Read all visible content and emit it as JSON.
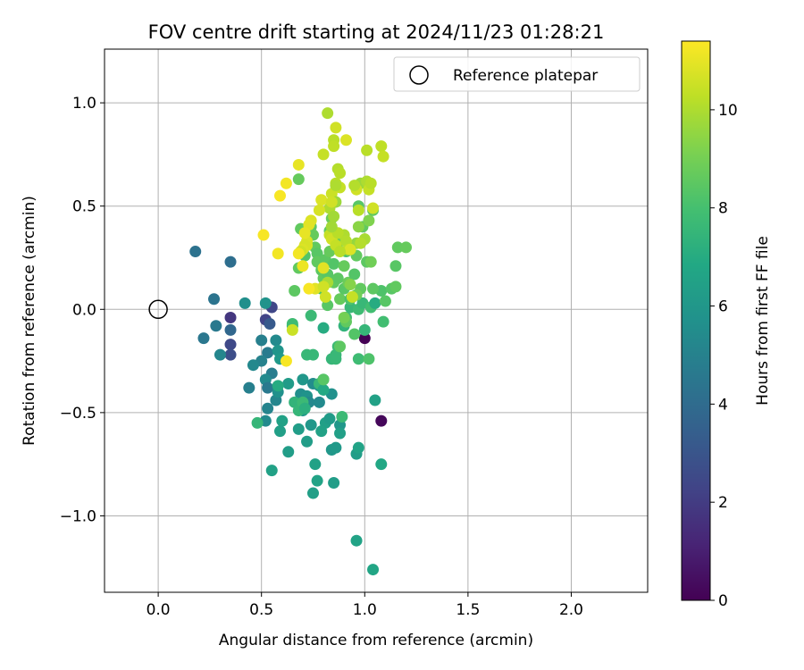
{
  "chart_data": {
    "type": "scatter",
    "title": "FOV centre drift starting at 2024/11/23 01:28:21",
    "xlabel": "Angular distance from reference (arcmin)",
    "ylabel": "Rotation from reference (arcmin)",
    "xlim": [
      -0.26,
      2.37
    ],
    "ylim": [
      -1.37,
      1.26
    ],
    "x_ticks": [
      0.0,
      0.5,
      1.0,
      1.5,
      2.0
    ],
    "x_tick_labels": [
      "0.0",
      "0.5",
      "1.0",
      "1.5",
      "2.0"
    ],
    "y_ticks": [
      -1.0,
      -0.5,
      0.0,
      0.5,
      1.0
    ],
    "y_tick_labels": [
      "−1.0",
      "−0.5",
      "0.0",
      "0.5",
      "1.0"
    ],
    "grid": true,
    "legend": {
      "position": "top-right",
      "entries": [
        "Reference platepar"
      ]
    },
    "reference_point": {
      "x": 0.0,
      "y": 0.0,
      "marker": "hollow-circle"
    },
    "colorbar": {
      "label": "Hours from first FF file",
      "colormap": "viridis",
      "range": [
        0,
        11.4
      ],
      "ticks": [
        0,
        2,
        4,
        6,
        8,
        10
      ],
      "tick_labels": [
        "0",
        "2",
        "4",
        "6",
        "8",
        "10"
      ]
    },
    "series": [
      {
        "points": [
          [
            1.0,
            -0.14,
            0.0
          ],
          [
            1.08,
            -0.54,
            0.2
          ],
          [
            0.35,
            -0.04,
            1.8
          ],
          [
            0.35,
            -0.17,
            2.5
          ],
          [
            0.35,
            -0.22,
            2.7
          ],
          [
            0.52,
            -0.05,
            2.3
          ],
          [
            0.55,
            0.01,
            2.4
          ],
          [
            0.54,
            -0.07,
            3.2
          ],
          [
            0.35,
            -0.1,
            3.8
          ],
          [
            0.35,
            0.23,
            4.1
          ],
          [
            0.18,
            0.28,
            4.3
          ],
          [
            0.27,
            0.05,
            4.4
          ],
          [
            0.28,
            -0.08,
            4.6
          ],
          [
            0.22,
            -0.14,
            4.5
          ],
          [
            0.3,
            -0.22,
            5.2
          ],
          [
            0.42,
            0.03,
            5.6
          ],
          [
            0.52,
            0.03,
            5.8
          ],
          [
            0.5,
            -0.15,
            4.9
          ],
          [
            0.53,
            -0.21,
            4.7
          ],
          [
            0.55,
            -0.31,
            4.8
          ],
          [
            0.5,
            -0.25,
            5.0
          ],
          [
            0.46,
            -0.27,
            5.3
          ],
          [
            0.44,
            -0.38,
            4.9
          ],
          [
            0.52,
            -0.34,
            5.4
          ],
          [
            0.53,
            -0.38,
            4.6
          ],
          [
            0.53,
            -0.48,
            5.1
          ],
          [
            0.52,
            -0.54,
            5.4
          ],
          [
            0.57,
            -0.44,
            5.2
          ],
          [
            0.58,
            -0.4,
            5.7
          ],
          [
            0.57,
            -0.15,
            5.4
          ],
          [
            0.58,
            -0.2,
            5.9
          ],
          [
            0.59,
            -0.24,
            6.1
          ],
          [
            0.63,
            -0.36,
            6.2
          ],
          [
            0.6,
            -0.54,
            6.5
          ],
          [
            0.59,
            -0.59,
            6.4
          ],
          [
            0.63,
            -0.69,
            6.3
          ],
          [
            0.55,
            -0.78,
            6.5
          ],
          [
            0.68,
            -0.58,
            6.3
          ],
          [
            0.69,
            -0.41,
            5.6
          ],
          [
            0.7,
            -0.34,
            6.0
          ],
          [
            0.72,
            -0.42,
            5.8
          ],
          [
            0.73,
            -0.45,
            5.3
          ],
          [
            0.7,
            -0.49,
            6.0
          ],
          [
            0.72,
            -0.64,
            6.3
          ],
          [
            0.74,
            -0.56,
            6.0
          ],
          [
            0.75,
            -0.36,
            5.5
          ],
          [
            0.78,
            -0.37,
            5.9
          ],
          [
            0.78,
            -0.45,
            5.4
          ],
          [
            0.8,
            -0.34,
            6.2
          ],
          [
            0.81,
            -0.55,
            6.4
          ],
          [
            0.79,
            -0.59,
            6.5
          ],
          [
            0.76,
            -0.75,
            6.5
          ],
          [
            0.77,
            -0.83,
            6.6
          ],
          [
            0.75,
            -0.89,
            6.4
          ],
          [
            0.84,
            -0.41,
            5.7
          ],
          [
            0.83,
            -0.53,
            6.2
          ],
          [
            0.84,
            -0.68,
            6.0
          ],
          [
            0.85,
            -0.84,
            6.3
          ],
          [
            0.86,
            -0.67,
            6.1
          ],
          [
            0.88,
            -0.56,
            6.0
          ],
          [
            0.88,
            -0.6,
            6.4
          ],
          [
            0.96,
            -0.7,
            6.3
          ],
          [
            0.97,
            -0.67,
            6.6
          ],
          [
            0.96,
            -1.12,
            6.6
          ],
          [
            1.04,
            -1.26,
            6.7
          ],
          [
            1.05,
            -0.44,
            6.5
          ],
          [
            1.08,
            -0.75,
            6.8
          ],
          [
            0.48,
            -0.55,
            7.5
          ],
          [
            0.58,
            -0.37,
            7.0
          ],
          [
            0.65,
            -0.08,
            6.8
          ],
          [
            0.66,
            -0.45,
            7.4
          ],
          [
            0.68,
            -0.49,
            7.5
          ],
          [
            0.7,
            -0.45,
            7.7
          ],
          [
            0.71,
            -0.48,
            7.2
          ],
          [
            0.72,
            -0.22,
            7.6
          ],
          [
            0.75,
            -0.22,
            7.6
          ],
          [
            0.74,
            -0.03,
            7.7
          ],
          [
            0.78,
            -0.36,
            7.6
          ],
          [
            0.8,
            -0.39,
            6.9
          ],
          [
            0.8,
            -0.09,
            7.0
          ],
          [
            0.84,
            -0.24,
            7.5
          ],
          [
            0.86,
            -0.24,
            7.6
          ],
          [
            0.87,
            -0.18,
            7.7
          ],
          [
            0.86,
            -0.22,
            7.6
          ],
          [
            0.89,
            -0.52,
            7.7
          ],
          [
            0.9,
            -0.08,
            7.4
          ],
          [
            0.91,
            -0.04,
            7.8
          ],
          [
            0.93,
            0.01,
            7.6
          ],
          [
            0.97,
            -0.24,
            7.8
          ],
          [
            0.97,
            0.0,
            7.8
          ],
          [
            0.99,
            0.03,
            7.6
          ],
          [
            1.0,
            -0.1,
            7.5
          ],
          [
            1.02,
            -0.24,
            8.2
          ],
          [
            1.03,
            0.01,
            7.9
          ],
          [
            1.05,
            0.03,
            7.0
          ],
          [
            1.08,
            0.09,
            8.2
          ],
          [
            1.09,
            -0.06,
            7.9
          ],
          [
            1.1,
            0.04,
            8.4
          ],
          [
            1.13,
            0.1,
            8.4
          ],
          [
            1.15,
            0.11,
            8.6
          ],
          [
            1.15,
            0.21,
            8.4
          ],
          [
            1.16,
            0.3,
            8.6
          ],
          [
            1.2,
            0.3,
            8.7
          ],
          [
            0.65,
            -0.07,
            7.8
          ],
          [
            0.66,
            0.09,
            8.5
          ],
          [
            0.68,
            0.2,
            8.6
          ],
          [
            0.68,
            0.63,
            8.7
          ],
          [
            0.69,
            0.39,
            8.6
          ],
          [
            0.71,
            0.26,
            8.3
          ],
          [
            0.72,
            0.38,
            8.6
          ],
          [
            0.74,
            0.4,
            8.5
          ],
          [
            0.75,
            0.36,
            8.7
          ],
          [
            0.76,
            0.3,
            8.6
          ],
          [
            0.77,
            0.27,
            8.4
          ],
          [
            0.77,
            0.23,
            8.6
          ],
          [
            0.79,
            0.19,
            8.5
          ],
          [
            0.79,
            0.1,
            8.3
          ],
          [
            0.8,
            0.15,
            8.6
          ],
          [
            0.81,
            0.24,
            8.5
          ],
          [
            0.82,
            0.02,
            8.4
          ],
          [
            0.82,
            0.17,
            8.4
          ],
          [
            0.83,
            0.28,
            8.7
          ],
          [
            0.83,
            0.38,
            8.6
          ],
          [
            0.84,
            0.44,
            8.8
          ],
          [
            0.85,
            0.13,
            8.6
          ],
          [
            0.85,
            0.22,
            8.3
          ],
          [
            0.87,
            0.15,
            8.5
          ],
          [
            0.88,
            0.33,
            8.9
          ],
          [
            0.88,
            0.05,
            8.7
          ],
          [
            0.9,
            0.1,
            8.4
          ],
          [
            0.9,
            0.21,
            8.7
          ],
          [
            0.91,
            0.28,
            8.2
          ],
          [
            0.92,
            0.13,
            8.8
          ],
          [
            0.93,
            0.05,
            8.2
          ],
          [
            0.95,
            0.17,
            8.3
          ],
          [
            0.96,
            0.26,
            8.6
          ],
          [
            0.97,
            0.5,
            8.4
          ],
          [
            0.98,
            0.1,
            8.6
          ],
          [
            0.99,
            0.4,
            8.6
          ],
          [
            1.01,
            0.23,
            8.5
          ],
          [
            1.02,
            0.43,
            9.2
          ],
          [
            1.04,
            0.48,
            8.6
          ],
          [
            1.03,
            0.23,
            8.9
          ],
          [
            1.04,
            0.1,
            8.5
          ],
          [
            0.8,
            -0.34,
            8.4
          ],
          [
            0.88,
            -0.18,
            8.5
          ],
          [
            0.91,
            -0.06,
            8.6
          ],
          [
            0.9,
            -0.04,
            9.0
          ],
          [
            0.95,
            -0.12,
            8.3
          ],
          [
            0.94,
            0.06,
            9.1
          ],
          [
            0.96,
            0.07,
            8.9
          ],
          [
            0.96,
            0.32,
            9.6
          ],
          [
            0.98,
            0.61,
            9.7
          ],
          [
            1.0,
            0.34,
            9.9
          ],
          [
            1.01,
            0.62,
            10.0
          ],
          [
            1.01,
            0.77,
            10.2
          ],
          [
            1.02,
            0.58,
            10.4
          ],
          [
            1.03,
            0.61,
            10.2
          ],
          [
            1.08,
            0.79,
            10.3
          ],
          [
            1.09,
            0.74,
            10.4
          ],
          [
            0.82,
            0.95,
            10.0
          ],
          [
            0.85,
            0.82,
            10.2
          ],
          [
            0.85,
            0.79,
            10.3
          ],
          [
            0.86,
            0.88,
            10.6
          ],
          [
            0.87,
            0.68,
            10.1
          ],
          [
            0.88,
            0.66,
            10.2
          ],
          [
            0.88,
            0.59,
            10.4
          ],
          [
            0.86,
            0.61,
            10.2
          ],
          [
            0.83,
            0.49,
            10.0
          ],
          [
            0.84,
            0.56,
            10.5
          ],
          [
            0.85,
            0.45,
            9.8
          ],
          [
            0.86,
            0.52,
            9.7
          ],
          [
            0.9,
            0.36,
            10.0
          ],
          [
            0.91,
            0.33,
            10.1
          ],
          [
            0.92,
            0.29,
            10.3
          ],
          [
            0.93,
            0.29,
            10.8
          ],
          [
            0.94,
            0.06,
            10.4
          ],
          [
            0.83,
            0.36,
            10.4
          ],
          [
            0.84,
            0.34,
            10.6
          ],
          [
            0.86,
            0.31,
            10.4
          ],
          [
            0.88,
            0.28,
            10.2
          ],
          [
            0.91,
            0.82,
            10.8
          ],
          [
            0.96,
            0.58,
            10.6
          ],
          [
            0.97,
            0.48,
            10.2
          ],
          [
            0.8,
            0.75,
            10.4
          ],
          [
            0.79,
            0.53,
            10.8
          ],
          [
            0.78,
            0.48,
            10.7
          ],
          [
            0.8,
            0.2,
            10.9
          ],
          [
            0.81,
            0.06,
            10.6
          ],
          [
            0.76,
            0.1,
            10.9
          ],
          [
            0.73,
            0.1,
            11.3
          ],
          [
            0.74,
            0.43,
            10.8
          ],
          [
            0.73,
            0.41,
            10.9
          ],
          [
            0.72,
            0.33,
            10.8
          ],
          [
            0.72,
            0.31,
            10.8
          ],
          [
            0.71,
            0.31,
            10.7
          ],
          [
            0.7,
            0.29,
            10.8
          ],
          [
            0.71,
            0.37,
            11.0
          ],
          [
            0.7,
            0.21,
            11.1
          ],
          [
            0.69,
            0.28,
            10.6
          ],
          [
            0.68,
            0.27,
            11.2
          ],
          [
            0.68,
            0.7,
            11.0
          ],
          [
            0.62,
            0.61,
            11.2
          ],
          [
            0.59,
            0.55,
            11.3
          ],
          [
            0.58,
            0.27,
            11.2
          ],
          [
            0.51,
            0.36,
            11.3
          ],
          [
            0.62,
            -0.25,
            11.3
          ],
          [
            0.65,
            -0.1,
            10.5
          ],
          [
            0.86,
            0.6,
            10.0
          ],
          [
            0.87,
            0.37,
            10.2
          ],
          [
            0.84,
            0.52,
            10.6
          ],
          [
            0.82,
            0.13,
            9.9
          ],
          [
            0.84,
            0.4,
            9.8
          ],
          [
            1.04,
            0.49,
            10.6
          ],
          [
            0.8,
            0.11,
            10.6
          ],
          [
            0.98,
            0.32,
            10.1
          ],
          [
            0.97,
            0.4,
            9.4
          ],
          [
            0.93,
            0.12,
            9.3
          ],
          [
            0.95,
            0.6,
            10.1
          ]
        ]
      }
    ]
  }
}
